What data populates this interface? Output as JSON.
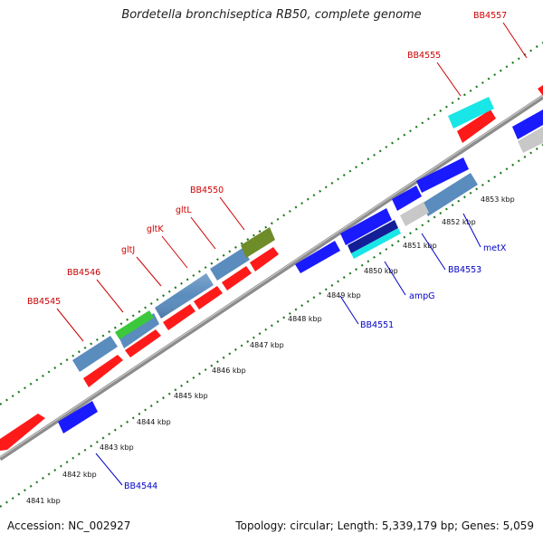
{
  "title": "Bordetella bronchiseptica RB50, complete genome",
  "footer": {
    "accession": "Accession: NC_002927",
    "topology": "Topology: circular; Length: 5,339,179 bp; Genes: 5,059"
  },
  "colors": {
    "red": "#ff1a1a",
    "blue": "#1a1aff",
    "steel": "#5a8cbe",
    "green": "#3cc83c",
    "olive": "#6e8c28",
    "cyan": "#19e6e6",
    "navy": "#141e96",
    "lightgray": "#c8c8c8",
    "backbone": "#8c8c8c",
    "ticks": "#1e7a1e",
    "label_red": "#cc0000",
    "label_blue": "#0000c8"
  },
  "kbp_labels": [
    "4841 kbp",
    "4842 kbp",
    "4843 kbp",
    "4844 kbp",
    "4845 kbp",
    "4846 kbp",
    "4847 kbp",
    "4848 kbp",
    "4849 kbp",
    "4850 kbp",
    "4851 kbp",
    "4852 kbp",
    "4853 kbp"
  ],
  "upper_labels": [
    "BB4545",
    "BB4546",
    "gltJ",
    "gltK",
    "gltL",
    "BB4550",
    "BB4555",
    "BB4557"
  ],
  "lower_labels": [
    "BB4544",
    "BB4551",
    "ampG",
    "BB4553",
    "metX"
  ]
}
